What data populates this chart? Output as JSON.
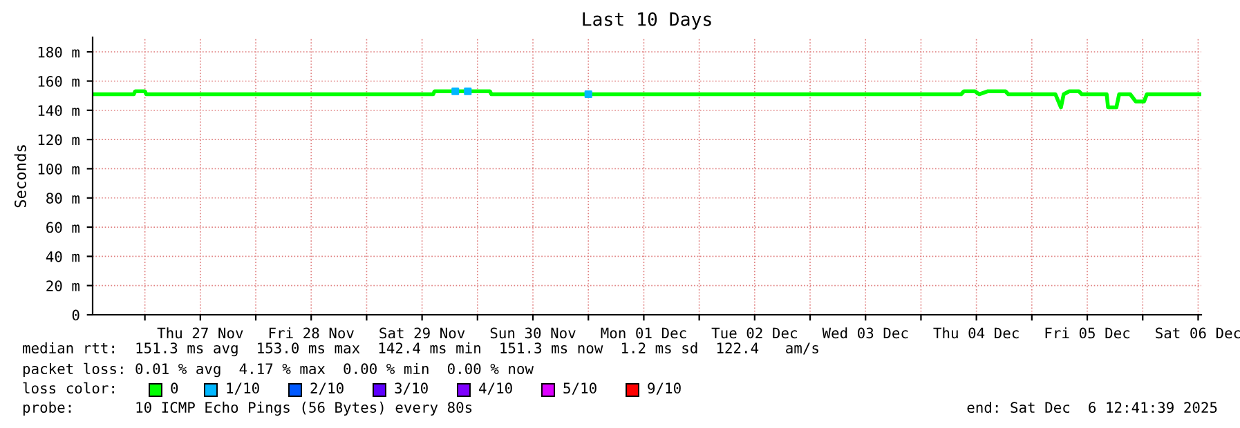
{
  "chart_data": {
    "type": "line",
    "title": "Last 10 Days",
    "ylabel": "Seconds",
    "xlim": [
      "2025-11-26T12:41",
      "2025-12-06T12:41"
    ],
    "xticks": [
      {
        "value": "2025-11-27T00:00",
        "label": null
      },
      {
        "value": "2025-11-27T12:00",
        "label": "Thu 27 Nov"
      },
      {
        "value": "2025-11-28T00:00",
        "label": null
      },
      {
        "value": "2025-11-28T12:00",
        "label": "Fri 28 Nov"
      },
      {
        "value": "2025-11-29T00:00",
        "label": null
      },
      {
        "value": "2025-11-29T12:00",
        "label": "Sat 29 Nov"
      },
      {
        "value": "2025-11-30T00:00",
        "label": null
      },
      {
        "value": "2025-11-30T12:00",
        "label": "Sun 30 Nov"
      },
      {
        "value": "2025-12-01T00:00",
        "label": null
      },
      {
        "value": "2025-12-01T12:00",
        "label": "Mon 01 Dec"
      },
      {
        "value": "2025-12-02T00:00",
        "label": null
      },
      {
        "value": "2025-12-02T12:00",
        "label": "Tue 02 Dec"
      },
      {
        "value": "2025-12-03T00:00",
        "label": null
      },
      {
        "value": "2025-12-03T12:00",
        "label": "Wed 03 Dec"
      },
      {
        "value": "2025-12-04T00:00",
        "label": null
      },
      {
        "value": "2025-12-04T12:00",
        "label": "Thu 04 Dec"
      },
      {
        "value": "2025-12-05T00:00",
        "label": null
      },
      {
        "value": "2025-12-05T12:00",
        "label": "Fri 05 Dec"
      },
      {
        "value": "2025-12-06T00:00",
        "label": null
      },
      {
        "value": "2025-12-06T12:00",
        "label": "Sat 06 Dec"
      }
    ],
    "ylim": [
      0,
      190
    ],
    "yticks": [
      0,
      {
        "value": 20,
        "label": "20 m"
      },
      {
        "value": 40,
        "label": "40 m"
      },
      {
        "value": 60,
        "label": "60 m"
      },
      {
        "value": 80,
        "label": "80 m"
      },
      {
        "value": 100,
        "label": "100 m"
      },
      {
        "value": 120,
        "label": "120 m"
      },
      {
        "value": 140,
        "label": "140 m"
      },
      {
        "value": 160,
        "label": "160 m"
      },
      {
        "value": 180,
        "label": "180 m"
      }
    ],
    "grid": true,
    "legend": "bottom",
    "legend_title": "loss color:",
    "series": [
      {
        "name": "0",
        "color": "#00ff00",
        "x": [
          "2025-11-26T12:41",
          "2025-11-26T21:36",
          "2025-11-26T21:54",
          "2025-11-27T00:00",
          "2025-11-27T00:18",
          "2025-11-29T14:24",
          "2025-11-29T14:42",
          "2025-11-30T02:42",
          "2025-11-30T03:00",
          "2025-12-04T08:42",
          "2025-12-04T09:18",
          "2025-12-04T11:42",
          "2025-12-04T12:36",
          "2025-12-04T14:24",
          "2025-12-04T18:18",
          "2025-12-04T18:54",
          "2025-12-05T05:06",
          "2025-12-05T06:18",
          "2025-12-05T06:54",
          "2025-12-05T08:06",
          "2025-12-05T10:12",
          "2025-12-05T10:48",
          "2025-12-05T16:12",
          "2025-12-05T16:30",
          "2025-12-05T18:18",
          "2025-12-05T18:54",
          "2025-12-05T21:18",
          "2025-12-05T22:30",
          "2025-12-06T00:18",
          "2025-12-06T00:54",
          "2025-12-06T12:41"
        ],
        "values": [
          151,
          151,
          153,
          153,
          151,
          151,
          153,
          153,
          151,
          151,
          153,
          153,
          151,
          153,
          153,
          151,
          151,
          142,
          151,
          153,
          153,
          151,
          151,
          142,
          142,
          151,
          151,
          146,
          146,
          151,
          151
        ]
      },
      {
        "name": "1/10",
        "color": "#00b7ff",
        "type": "scatter",
        "marker": "square",
        "x": [
          "2025-11-29T19:12",
          "2025-11-29T21:54",
          "2025-12-01T00:00"
        ],
        "values": [
          153,
          153,
          151
        ]
      },
      {
        "name": "2/10",
        "color": "#0059ff"
      },
      {
        "name": "3/10",
        "color": "#5e00ff"
      },
      {
        "name": "4/10",
        "color": "#7e00ff"
      },
      {
        "name": "5/10",
        "color": "#dd00ff"
      },
      {
        "name": "9/10",
        "color": "#ff0000"
      }
    ],
    "annotations": [
      "median rtt:  151.3 ms avg  153.0 ms max  142.4 ms min  151.3 ms now  1.2 ms sd  122.4   am/s",
      "packet loss: 0.01 % avg  4.17 % max  0.00 % min  0.00 % now",
      "probe:       10 ICMP Echo Pings (56 Bytes) every 80s",
      "end: Sat Dec  6 12:41:39 2025"
    ]
  }
}
